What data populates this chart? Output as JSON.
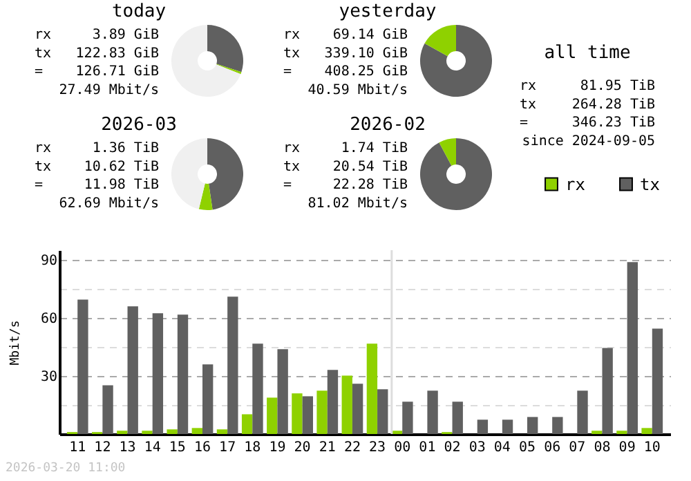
{
  "chart_data": [
    {
      "type": "donut",
      "title": "today",
      "annotations": [
        "rx 3.89 GiB",
        "tx 122.83 GiB",
        "= 126.71 GiB",
        "27.49 Mbit/s"
      ],
      "values": [
        30.09,
        0.95,
        68.96
      ],
      "colors": [
        "#606060",
        "#8fd100",
        "#f0f0f0"
      ]
    },
    {
      "type": "donut",
      "title": "yesterday",
      "annotations": [
        "rx 69.14 GiB",
        "tx 339.10 GiB",
        "= 408.25 GiB",
        "40.59 Mbit/s"
      ],
      "values": [
        83.06,
        16.94
      ],
      "colors": [
        "#606060",
        "#8fd100"
      ]
    },
    {
      "type": "donut",
      "title": "2026-03",
      "annotations": [
        "rx 1.36 TiB",
        "tx 10.62 TiB",
        "= 11.98 TiB",
        "62.69 Mbit/s"
      ],
      "values": [
        47.67,
        6.1,
        46.23
      ],
      "colors": [
        "#606060",
        "#8fd100",
        "#f0f0f0"
      ]
    },
    {
      "type": "donut",
      "title": "2026-02",
      "annotations": [
        "rx 1.74 TiB",
        "tx 20.54 TiB",
        "= 22.28 TiB",
        "81.02 Mbit/s"
      ],
      "values": [
        92.19,
        7.81
      ],
      "colors": [
        "#606060",
        "#8fd100"
      ]
    },
    {
      "type": "other",
      "title": "all time",
      "annotations": [
        "rx 81.95 TiB",
        "tx 264.28 TiB",
        "= 346.23 TiB",
        "since 2024-09-05"
      ]
    },
    {
      "type": "bar",
      "ylabel": "Mbit/s",
      "annotations": [
        "2026-03-20 11:00"
      ],
      "categories": [
        "11",
        "12",
        "13",
        "14",
        "15",
        "16",
        "17",
        "18",
        "19",
        "20",
        "21",
        "22",
        "23",
        "00",
        "01",
        "02",
        "03",
        "04",
        "05",
        "06",
        "07",
        "08",
        "09",
        "10"
      ],
      "series": [
        {
          "name": "rx",
          "color": "#8fd100",
          "values": [
            1,
            1,
            1.7,
            1.7,
            2.4,
            3.1,
            2.4,
            10.2,
            18.8,
            21,
            22.4,
            30.2,
            46.7,
            1.7,
            0,
            1,
            0,
            0,
            0,
            0,
            0,
            1.7,
            1.7,
            3.1
          ]
        },
        {
          "name": "tx",
          "color": "#606060",
          "values": [
            69.5,
            25.2,
            66,
            62.4,
            61.7,
            36,
            71,
            46.7,
            43.8,
            19.5,
            33.1,
            26,
            23.1,
            16.7,
            22.4,
            16.7,
            7.4,
            7.4,
            8.8,
            8.8,
            22.4,
            44.5,
            88.8,
            54.5
          ]
        }
      ],
      "ylim": [
        0,
        95
      ],
      "yticks": [
        {
          "value": 15,
          "label": null
        },
        30,
        {
          "value": 45,
          "label": null
        },
        60,
        {
          "value": 75,
          "label": null
        },
        90
      ],
      "grid": "y",
      "legend": "top right",
      "ref_lines": [
        {
          "axis": "x",
          "value": "00",
          "color": "#dddddd"
        }
      ]
    }
  ]
}
